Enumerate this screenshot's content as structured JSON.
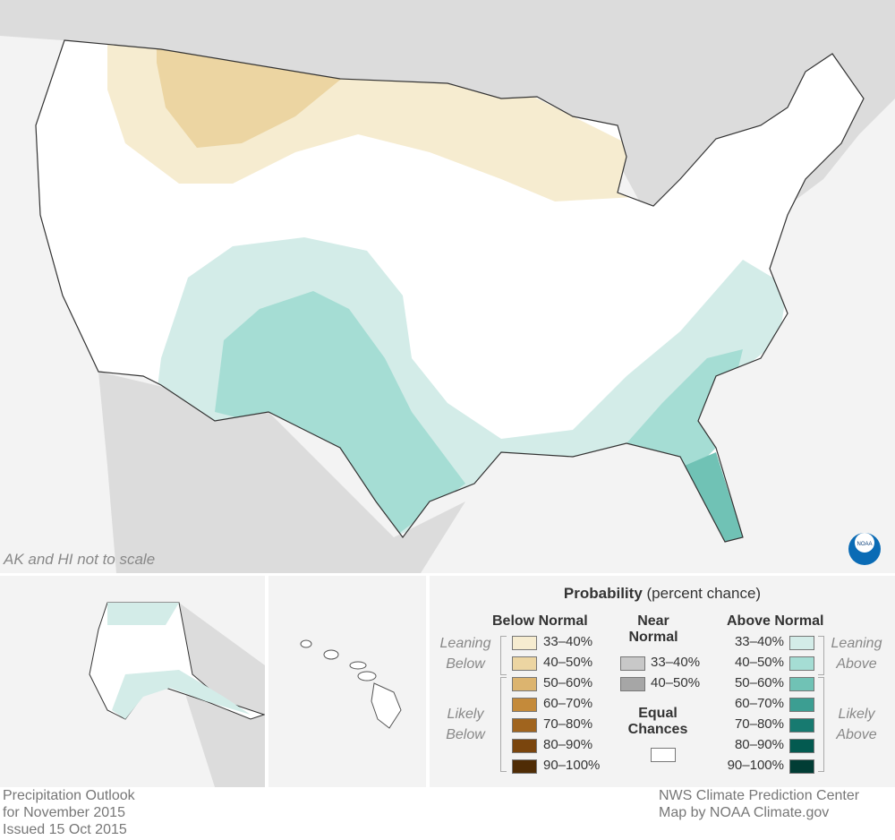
{
  "map_note": "AK and HI not to scale",
  "legend": {
    "title_bold": "Probability",
    "title_rest": " (percent chance)",
    "below": {
      "heading": "Below Normal",
      "leaning": "Leaning Below",
      "likely": "Likely Below",
      "items": [
        {
          "label": "33–40%",
          "color": "#f6ecd0"
        },
        {
          "label": "40–50%",
          "color": "#ecd5a2"
        },
        {
          "label": "50–60%",
          "color": "#dcb46f"
        },
        {
          "label": "60–70%",
          "color": "#c48a3a"
        },
        {
          "label": "70–80%",
          "color": "#a0641e"
        },
        {
          "label": "80–90%",
          "color": "#7a450d"
        },
        {
          "label": "90–100%",
          "color": "#4f2c05"
        }
      ]
    },
    "near": {
      "heading": "Near Normal",
      "items": [
        {
          "label": "33–40%",
          "color": "#c8c8c8"
        },
        {
          "label": "40–50%",
          "color": "#a6a6a6"
        }
      ]
    },
    "equal": {
      "heading": "Equal Chances",
      "color": "#ffffff"
    },
    "above": {
      "heading": "Above Normal",
      "leaning": "Leaning Above",
      "likely": "Likely Above",
      "items": [
        {
          "label": "33–40%",
          "color": "#d3ece8"
        },
        {
          "label": "40–50%",
          "color": "#a5ddd4"
        },
        {
          "label": "50–60%",
          "color": "#70c2b5"
        },
        {
          "label": "60–70%",
          "color": "#3c9e92"
        },
        {
          "label": "70–80%",
          "color": "#177a70"
        },
        {
          "label": "80–90%",
          "color": "#035a50"
        },
        {
          "label": "90–100%",
          "color": "#013d35"
        }
      ]
    }
  },
  "footer": {
    "left": [
      "Precipitation Outlook",
      "for November 2015",
      "Issued 15 Oct 2015"
    ],
    "right": [
      "NWS Climate Prediction Center",
      "Map by NOAA Climate.gov"
    ]
  },
  "logo": "NOAA"
}
